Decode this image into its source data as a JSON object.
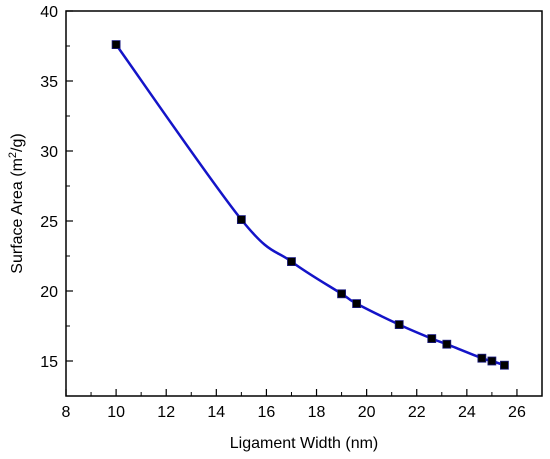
{
  "chart_data": {
    "type": "line",
    "title": "",
    "xlabel": "Ligament Width (nm)",
    "ylabel_parts": [
      "Surface Area (m",
      "2",
      "/g)"
    ],
    "xlim": [
      8,
      27
    ],
    "ylim": [
      12.5,
      40
    ],
    "x_ticks": [
      8,
      10,
      12,
      14,
      16,
      18,
      20,
      22,
      24,
      26
    ],
    "y_ticks": [
      15,
      20,
      25,
      30,
      35,
      40
    ],
    "grid": false,
    "legend": "none",
    "series": [
      {
        "x": [
          10,
          15,
          17,
          19,
          19.6,
          21.3,
          22.6,
          23.2,
          24.6,
          25.0,
          25.5
        ],
        "y": [
          37.6,
          25.1,
          22.1,
          19.8,
          19.1,
          17.6,
          16.6,
          16.2,
          15.2,
          15.0,
          14.7
        ],
        "line_color": "#1414c8",
        "marker": "square",
        "marker_color": "#000000"
      }
    ]
  }
}
